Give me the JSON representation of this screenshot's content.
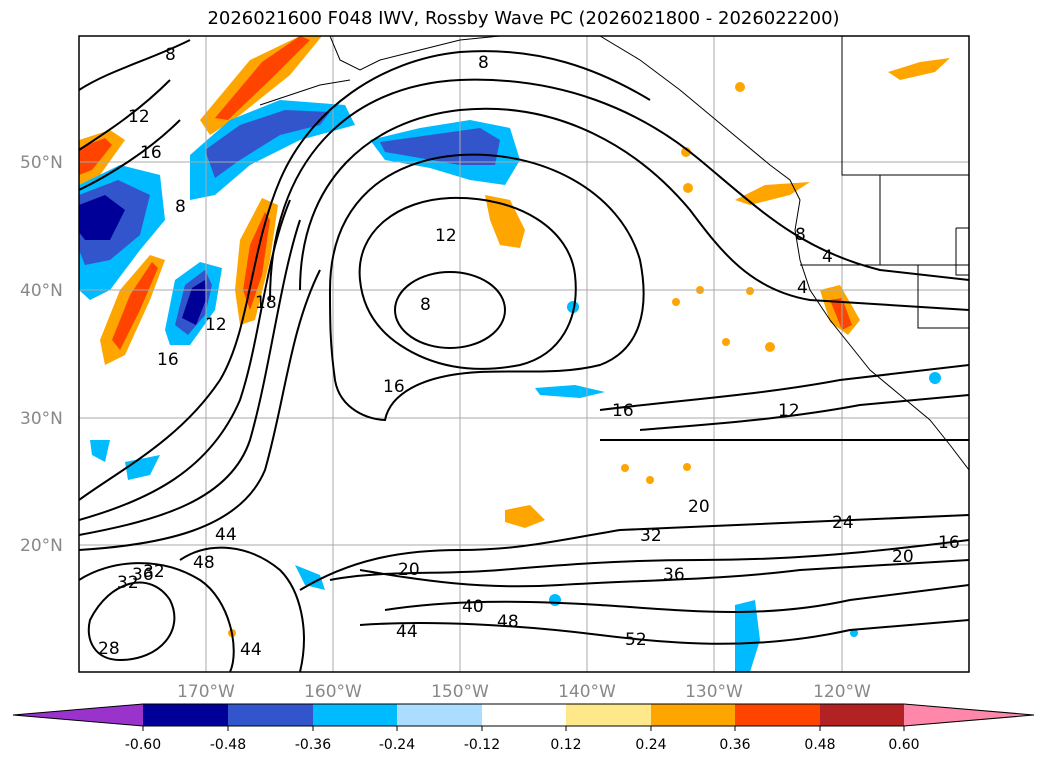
{
  "title": "2026021600 F048 IWV, Rossby Wave PC (2026021800 - 2026022200)",
  "lat_labels": [
    "50°N",
    "40°N",
    "30°N",
    "20°N"
  ],
  "lon_labels": [
    "170°W",
    "160°W",
    "150°W",
    "140°W",
    "130°W",
    "120°W"
  ],
  "contour_labels": [
    "8",
    "12",
    "16",
    "8",
    "12",
    "8",
    "16",
    "16",
    "12",
    "18",
    "12",
    "16",
    "8",
    "4",
    "4",
    "8",
    "20",
    "24",
    "20",
    "16",
    "32",
    "36",
    "40",
    "44",
    "48",
    "52",
    "44",
    "48",
    "44",
    "36",
    "32",
    "28",
    "20",
    "32"
  ],
  "colorbar": {
    "ticks": [
      "-0.60",
      "-0.48",
      "-0.36",
      "-0.24",
      "-0.12",
      "0.12",
      "0.24",
      "0.36",
      "0.48",
      "0.60"
    ],
    "colors": [
      "#9933cc",
      "#000099",
      "#3355cc",
      "#00bbff",
      "#aaddff",
      "#ffffff",
      "#ffe88a",
      "#ffa500",
      "#ff4400",
      "#b22222",
      "#ff88aa"
    ]
  }
}
